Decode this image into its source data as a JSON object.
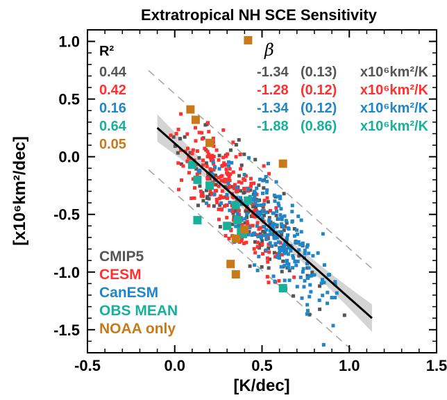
{
  "chart_data": {
    "type": "scatter",
    "title": "Extratropical NH SCE Sensitivity",
    "xlabel": "[K/dec]",
    "ylabel": "[x10⁶km²/dec]",
    "xlim": [
      -0.5,
      1.5
    ],
    "ylim": [
      -1.7,
      1.1
    ],
    "xticks": [
      "-0.5",
      "0.0",
      "0.5",
      "1.0",
      "1.5"
    ],
    "yticks": [
      "-1.5",
      "-1.0",
      "-0.5",
      "0.0",
      "0.5",
      "1.0"
    ],
    "series": [
      {
        "name": "CMIP5",
        "color": "#555555",
        "marker": "small-square"
      },
      {
        "name": "CESM",
        "color": "#ff3030",
        "marker": "small-square"
      },
      {
        "name": "CanESM",
        "color": "#1f86c8",
        "marker": "small-square"
      },
      {
        "name": "OBS MEAN",
        "color": "#18b09a",
        "marker": "large-square",
        "points": [
          [
            0.1,
            -0.07
          ],
          [
            0.13,
            -0.2
          ],
          [
            0.2,
            -0.25
          ],
          [
            0.13,
            -0.55
          ],
          [
            0.3,
            -0.6
          ],
          [
            0.35,
            -0.42
          ],
          [
            0.36,
            -0.55
          ],
          [
            0.38,
            -0.65
          ],
          [
            0.39,
            -0.67
          ],
          [
            0.42,
            -0.38
          ],
          [
            0.62,
            -1.14
          ]
        ]
      },
      {
        "name": "NOAA only",
        "color": "#c87a1a",
        "marker": "large-square",
        "points": [
          [
            0.42,
            1.01
          ],
          [
            0.09,
            0.41
          ],
          [
            0.12,
            0.32
          ],
          [
            0.2,
            0.12
          ],
          [
            0.62,
            -0.06
          ],
          [
            0.35,
            -0.71
          ],
          [
            0.4,
            -0.63
          ],
          [
            0.32,
            -0.93
          ],
          [
            0.35,
            -1.02
          ]
        ]
      }
    ],
    "regression": {
      "x": [
        -0.1,
        1.13
      ],
      "y": [
        0.25,
        -1.4
      ],
      "band": [
        0.04,
        0.12
      ]
    },
    "prediction_bounds": {
      "upper_offset": 0.43,
      "lower_offset": -0.43
    },
    "r2_header": "R²",
    "r2": [
      {
        "value": "0.44",
        "color": "#555555"
      },
      {
        "value": "0.42",
        "color": "#ff3030"
      },
      {
        "value": "0.16",
        "color": "#1f86c8"
      },
      {
        "value": "0.64",
        "color": "#18b09a"
      },
      {
        "value": "0.05",
        "color": "#c87a1a"
      }
    ],
    "beta_header": "β",
    "beta": [
      {
        "value": "-1.34",
        "se": "(0.13)",
        "color": "#555555"
      },
      {
        "value": "-1.28",
        "se": "(0.12)",
        "color": "#ff3030"
      },
      {
        "value": "-1.34",
        "se": "(0.12)",
        "color": "#1f86c8"
      },
      {
        "value": "-1.88",
        "se": "(0.86)",
        "color": "#18b09a"
      }
    ],
    "beta_unit": "x10⁶km²/K",
    "grid": false,
    "legend_position": "bottom-left"
  }
}
